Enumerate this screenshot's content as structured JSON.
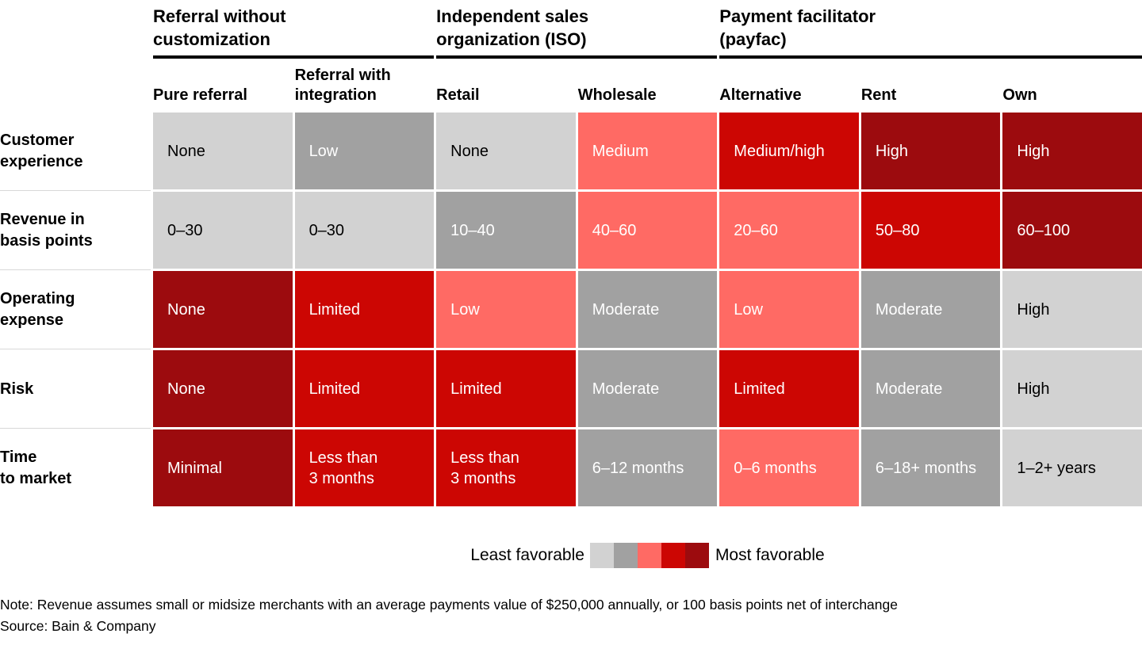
{
  "chart_data": {
    "type": "heatmap",
    "description": "Favorability matrix comparing merchant payment distribution models",
    "groups": [
      {
        "label": "Referral without\ncustomization",
        "columns": [
          "Pure referral",
          "Referral with\nintegration"
        ]
      },
      {
        "label": "Independent sales\norganization (ISO)",
        "columns": [
          "Retail",
          "Wholesale"
        ]
      },
      {
        "label": "Payment facilitator\n(payfac)",
        "columns": [
          "Alternative",
          "Rent",
          "Own"
        ]
      }
    ],
    "rows": [
      {
        "label": "Customer\nexperience",
        "cells": [
          {
            "text": "None",
            "favorability": 1
          },
          {
            "text": "Low",
            "favorability": 2
          },
          {
            "text": "None",
            "favorability": 1
          },
          {
            "text": "Medium",
            "favorability": 3
          },
          {
            "text": "Medium/high",
            "favorability": 4
          },
          {
            "text": "High",
            "favorability": 5
          },
          {
            "text": "High",
            "favorability": 5
          }
        ]
      },
      {
        "label": "Revenue in\nbasis points",
        "cells": [
          {
            "text": "0–30",
            "favorability": 1
          },
          {
            "text": "0–30",
            "favorability": 1
          },
          {
            "text": "10–40",
            "favorability": 2
          },
          {
            "text": "40–60",
            "favorability": 3
          },
          {
            "text": "20–60",
            "favorability": 3
          },
          {
            "text": "50–80",
            "favorability": 4
          },
          {
            "text": "60–100",
            "favorability": 5
          }
        ]
      },
      {
        "label": "Operating\nexpense",
        "cells": [
          {
            "text": "None",
            "favorability": 5
          },
          {
            "text": "Limited",
            "favorability": 4
          },
          {
            "text": "Low",
            "favorability": 3
          },
          {
            "text": "Moderate",
            "favorability": 2
          },
          {
            "text": "Low",
            "favorability": 3
          },
          {
            "text": "Moderate",
            "favorability": 2
          },
          {
            "text": "High",
            "favorability": 1
          }
        ]
      },
      {
        "label": "Risk",
        "cells": [
          {
            "text": "None",
            "favorability": 5
          },
          {
            "text": "Limited",
            "favorability": 4
          },
          {
            "text": "Limited",
            "favorability": 4
          },
          {
            "text": "Moderate",
            "favorability": 2
          },
          {
            "text": "Limited",
            "favorability": 4
          },
          {
            "text": "Moderate",
            "favorability": 2
          },
          {
            "text": "High",
            "favorability": 1
          }
        ]
      },
      {
        "label": "Time\nto market",
        "cells": [
          {
            "text": "Minimal",
            "favorability": 5
          },
          {
            "text": "Less than\n3 months",
            "favorability": 4
          },
          {
            "text": "Less than\n3 months",
            "favorability": 4
          },
          {
            "text": "6–12 months",
            "favorability": 2
          },
          {
            "text": "0–6 months",
            "favorability": 3
          },
          {
            "text": "6–18+ months",
            "favorability": 2
          },
          {
            "text": "1–2+ years",
            "favorability": 1
          }
        ]
      }
    ],
    "legend": {
      "least_label": "Least favorable",
      "most_label": "Most favorable"
    },
    "favorability_colors": [
      "#d2d2d2",
      "#a1a1a1",
      "#ff6a64",
      "#cc0603",
      "#9c0b0e"
    ],
    "cell_text_colors": {
      "on_least_favorable": "#000000",
      "otherwise": "#ffffff"
    }
  },
  "footer": {
    "note": "Note: Revenue assumes small or midsize merchants with an average payments value of $250,000 annually, or 100 basis points net of interchange",
    "source": "Source: Bain & Company"
  }
}
